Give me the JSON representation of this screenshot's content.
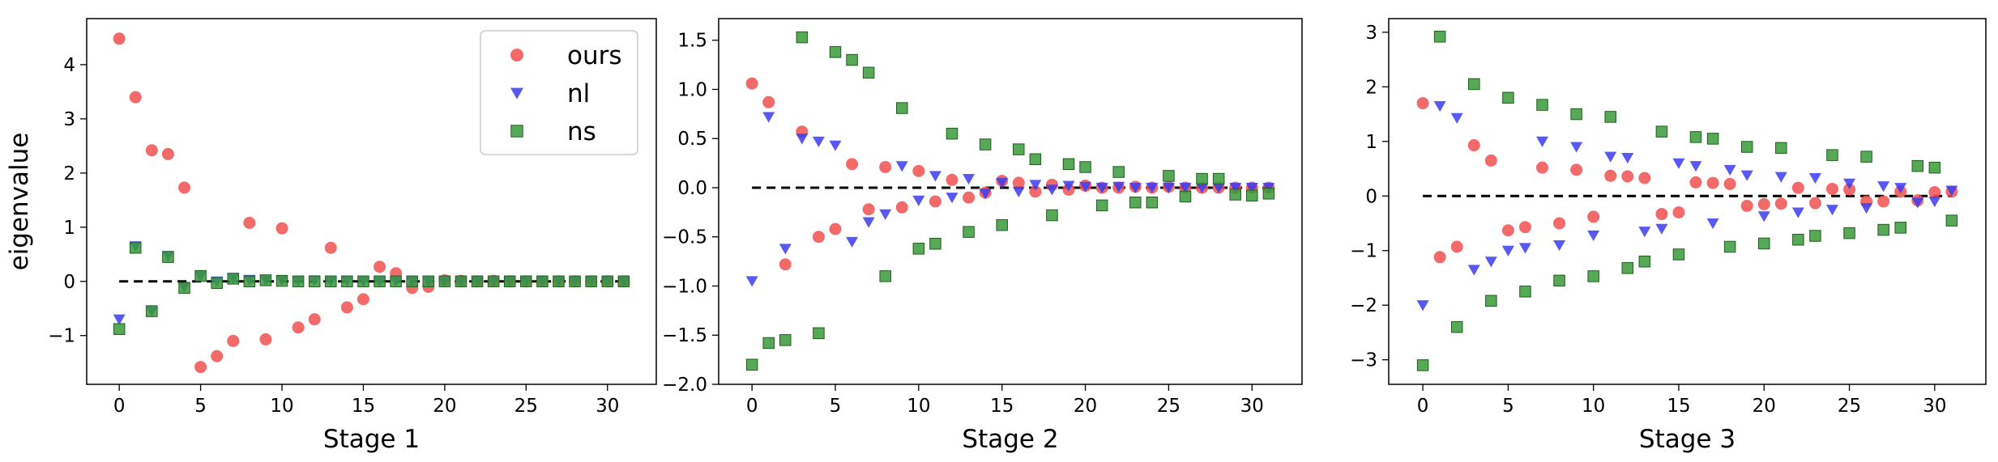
{
  "chart_data": [
    {
      "type": "scatter",
      "xlabel": "Stage 1",
      "ylabel": "eigenvalue",
      "xlim": [
        -2,
        33
      ],
      "ylim": [
        -1.9,
        4.85
      ],
      "xticks": [
        0,
        5,
        10,
        15,
        20,
        25,
        30
      ],
      "yticks": [
        -1,
        0,
        1,
        2,
        3,
        4
      ],
      "ytick_labels": [
        "−1",
        "0",
        "1",
        "2",
        "3",
        "4"
      ],
      "reference_line": 0,
      "legend": {
        "placement": "top-right"
      },
      "series": [
        {
          "name": "ours",
          "marker": "circle",
          "color": "#f05050",
          "x": [
            0,
            1,
            2,
            3,
            4,
            5,
            6,
            7,
            8,
            9,
            10,
            11,
            12,
            13,
            14,
            15,
            16,
            17,
            18,
            19,
            20,
            21,
            22,
            23,
            24,
            25,
            26,
            27,
            28,
            29,
            30,
            31
          ],
          "y": [
            4.48,
            3.4,
            2.42,
            2.35,
            1.73,
            -1.58,
            -1.38,
            -1.1,
            1.08,
            -1.07,
            0.98,
            -0.85,
            -0.7,
            0.62,
            -0.48,
            -0.33,
            0.27,
            0.15,
            -0.12,
            -0.1,
            0.02,
            0.01,
            0.0,
            0.01,
            0.0,
            0.0,
            0.0,
            0.0,
            0.0,
            0.0,
            0.0,
            0.0
          ]
        },
        {
          "name": "nl",
          "marker": "triangle-down",
          "color": "#3b3bf0",
          "x": [
            0,
            1,
            2,
            3,
            4,
            5,
            6,
            7,
            8,
            9,
            10,
            11,
            12,
            13,
            14,
            15,
            16,
            17,
            18,
            19,
            20,
            21,
            22,
            23,
            24,
            25,
            26,
            27,
            28,
            29,
            30,
            31
          ],
          "y": [
            -0.7,
            0.65,
            -0.55,
            0.47,
            -0.1,
            0.1,
            0.0,
            0.05,
            0.03,
            0.02,
            0.02,
            0.01,
            0.02,
            0.0,
            0.01,
            0.0,
            0.0,
            0.0,
            0.0,
            0.0,
            0.0,
            0.0,
            0.0,
            0.0,
            0.0,
            0.0,
            0.0,
            0.0,
            0.0,
            0.0,
            0.0,
            0.0
          ]
        },
        {
          "name": "ns",
          "marker": "square",
          "color": "#3a9a3a",
          "x": [
            0,
            1,
            2,
            3,
            4,
            5,
            6,
            7,
            8,
            9,
            10,
            11,
            12,
            13,
            14,
            15,
            16,
            17,
            18,
            19,
            20,
            21,
            22,
            23,
            24,
            25,
            26,
            27,
            28,
            29,
            30,
            31
          ],
          "y": [
            -0.88,
            0.62,
            -0.55,
            0.45,
            -0.12,
            0.1,
            -0.03,
            0.05,
            0.0,
            0.02,
            0.01,
            0.0,
            0.0,
            0.0,
            0.0,
            0.0,
            0.0,
            0.0,
            0.0,
            0.0,
            0.0,
            0.0,
            0.0,
            0.0,
            0.0,
            0.0,
            0.0,
            0.0,
            0.0,
            0.0,
            0.0,
            0.0
          ]
        }
      ]
    },
    {
      "type": "scatter",
      "xlabel": "Stage 2",
      "ylabel": "",
      "xlim": [
        -2,
        33
      ],
      "ylim": [
        -2.0,
        1.72
      ],
      "xticks": [
        0,
        5,
        10,
        15,
        20,
        25,
        30
      ],
      "yticks": [
        -2.0,
        -1.5,
        -1.0,
        -0.5,
        0.0,
        0.5,
        1.0,
        1.5
      ],
      "ytick_labels": [
        "−2.0",
        "−1.5",
        "−1.0",
        "−0.5",
        "0.0",
        "0.5",
        "1.0",
        "1.5"
      ],
      "reference_line": 0,
      "series": [
        {
          "name": "ours",
          "marker": "circle",
          "color": "#f05050",
          "x": [
            0,
            1,
            2,
            3,
            4,
            5,
            6,
            7,
            8,
            9,
            10,
            11,
            12,
            13,
            14,
            15,
            16,
            17,
            18,
            19,
            20,
            21,
            22,
            23,
            24,
            25,
            26,
            27,
            28,
            29,
            30,
            31
          ],
          "y": [
            1.06,
            0.87,
            -0.78,
            0.57,
            -0.5,
            -0.42,
            0.24,
            -0.22,
            0.21,
            -0.2,
            0.17,
            -0.14,
            0.08,
            -0.1,
            -0.05,
            0.07,
            0.05,
            -0.04,
            0.03,
            -0.02,
            0.02,
            0.0,
            0.0,
            0.01,
            0.0,
            0.01,
            0.0,
            0.0,
            0.0,
            0.0,
            0.0,
            0.0
          ]
        },
        {
          "name": "nl",
          "marker": "triangle-down",
          "color": "#3b3bf0",
          "x": [
            0,
            1,
            2,
            3,
            4,
            5,
            6,
            7,
            8,
            9,
            10,
            11,
            12,
            13,
            14,
            15,
            16,
            17,
            18,
            19,
            20,
            21,
            22,
            23,
            24,
            25,
            26,
            27,
            28,
            29,
            30,
            31
          ],
          "y": [
            -0.95,
            0.72,
            -0.62,
            0.5,
            0.47,
            0.43,
            -0.55,
            -0.35,
            -0.27,
            0.22,
            -0.13,
            0.12,
            -0.1,
            0.09,
            -0.06,
            0.05,
            -0.04,
            0.03,
            -0.02,
            0.02,
            0.01,
            0.0,
            0.01,
            0.0,
            0.0,
            0.0,
            0.0,
            0.0,
            0.0,
            0.0,
            0.0,
            0.0
          ]
        },
        {
          "name": "ns",
          "marker": "square",
          "color": "#3a9a3a",
          "x": [
            0,
            1,
            2,
            3,
            4,
            5,
            6,
            7,
            8,
            9,
            10,
            11,
            12,
            13,
            14,
            15,
            16,
            17,
            18,
            19,
            20,
            21,
            22,
            23,
            24,
            25,
            26,
            27,
            28,
            29,
            30,
            31
          ],
          "y": [
            -1.8,
            -1.58,
            -1.55,
            1.53,
            -1.48,
            1.38,
            1.3,
            1.17,
            -0.9,
            0.81,
            -0.62,
            -0.57,
            0.55,
            -0.45,
            0.44,
            -0.38,
            0.39,
            0.29,
            -0.28,
            0.24,
            0.21,
            -0.18,
            0.16,
            -0.15,
            -0.15,
            0.12,
            -0.09,
            0.09,
            0.09,
            -0.07,
            -0.08,
            -0.06
          ]
        }
      ]
    },
    {
      "type": "scatter",
      "xlabel": "Stage 3",
      "ylabel": "",
      "xlim": [
        -2,
        33
      ],
      "ylim": [
        -3.45,
        3.25
      ],
      "xticks": [
        0,
        5,
        10,
        15,
        20,
        25,
        30
      ],
      "yticks": [
        -3,
        -2,
        -1,
        0,
        1,
        2,
        3
      ],
      "ytick_labels": [
        "−3",
        "−2",
        "−1",
        "0",
        "1",
        "2",
        "3"
      ],
      "reference_line": 0,
      "series": [
        {
          "name": "ours",
          "marker": "circle",
          "color": "#f05050",
          "x": [
            0,
            1,
            2,
            3,
            4,
            5,
            6,
            7,
            8,
            9,
            10,
            11,
            12,
            13,
            14,
            15,
            16,
            17,
            18,
            19,
            20,
            21,
            22,
            23,
            24,
            25,
            26,
            27,
            28,
            29,
            30,
            31
          ],
          "y": [
            1.7,
            -1.12,
            -0.93,
            0.93,
            0.65,
            -0.63,
            -0.57,
            0.52,
            -0.5,
            0.48,
            -0.38,
            0.37,
            0.36,
            0.33,
            -0.33,
            -0.3,
            0.25,
            0.24,
            0.22,
            -0.18,
            -0.15,
            -0.14,
            0.15,
            -0.13,
            0.13,
            0.12,
            -0.1,
            -0.1,
            0.08,
            -0.08,
            0.07,
            0.08
          ]
        },
        {
          "name": "nl",
          "marker": "triangle-down",
          "color": "#3b3bf0",
          "x": [
            0,
            1,
            2,
            3,
            4,
            5,
            6,
            7,
            8,
            9,
            10,
            11,
            12,
            13,
            14,
            15,
            16,
            17,
            18,
            19,
            20,
            21,
            22,
            23,
            24,
            25,
            26,
            27,
            28,
            29,
            30,
            31
          ],
          "y": [
            -2.0,
            1.65,
            1.43,
            -1.35,
            -1.2,
            -1.0,
            -0.95,
            1.0,
            -0.9,
            0.9,
            -0.72,
            0.72,
            0.7,
            -0.65,
            -0.6,
            0.6,
            0.55,
            -0.5,
            0.48,
            0.38,
            -0.37,
            0.35,
            -0.3,
            0.33,
            -0.25,
            0.23,
            -0.22,
            0.18,
            0.15,
            -0.12,
            -0.1,
            0.1
          ]
        },
        {
          "name": "ns",
          "marker": "square",
          "color": "#3a9a3a",
          "x": [
            0,
            1,
            2,
            3,
            4,
            5,
            6,
            7,
            8,
            9,
            10,
            11,
            12,
            13,
            14,
            15,
            16,
            17,
            18,
            19,
            20,
            21,
            22,
            23,
            24,
            25,
            26,
            27,
            28,
            29,
            30,
            31
          ],
          "y": [
            -3.1,
            2.92,
            -2.4,
            2.05,
            -1.92,
            1.8,
            -1.75,
            1.67,
            -1.55,
            1.5,
            -1.47,
            1.45,
            -1.32,
            -1.2,
            1.18,
            -1.07,
            1.08,
            1.05,
            -0.93,
            0.9,
            -0.87,
            0.88,
            -0.8,
            -0.73,
            0.75,
            -0.68,
            0.72,
            -0.62,
            -0.58,
            0.55,
            0.52,
            -0.45
          ]
        }
      ]
    }
  ]
}
